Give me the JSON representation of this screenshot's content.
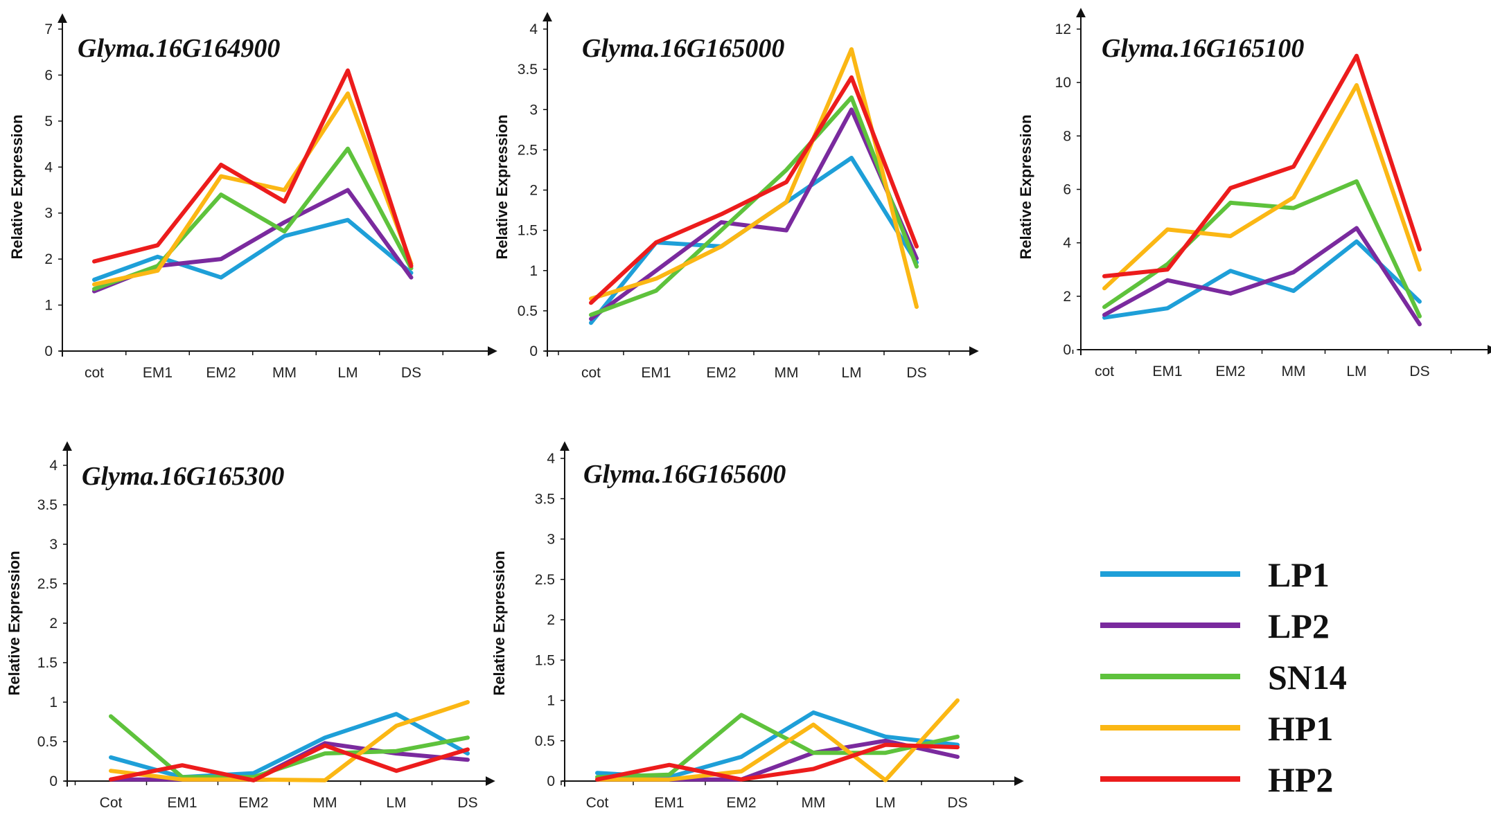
{
  "colors": {
    "LP1": "#1e9fd8",
    "LP2": "#7a2a9e",
    "SN14": "#5ec23c",
    "HP1": "#fbb714",
    "HP2": "#ec1c1c"
  },
  "legend": [
    {
      "name": "LP1",
      "color": "#1e9fd8"
    },
    {
      "name": "LP2",
      "color": "#7a2a9e"
    },
    {
      "name": "SN14",
      "color": "#5ec23c"
    },
    {
      "name": "HP1",
      "color": "#fbb714"
    },
    {
      "name": "HP2",
      "color": "#ec1c1c"
    }
  ],
  "chart_data": [
    {
      "type": "line",
      "title": "Glyma.16G164900",
      "ylabel": "Relative Expression",
      "xlabel": "",
      "categories": [
        "cot",
        "EM1",
        "EM2",
        "MM",
        "LM",
        "DS"
      ],
      "ylim": [
        0,
        7
      ],
      "yticks": [
        "0",
        "1",
        "2",
        "3",
        "4",
        "5",
        "6",
        "7"
      ],
      "ytick_values": [
        0,
        1,
        2,
        3,
        4,
        5,
        6,
        7
      ],
      "series": [
        {
          "name": "LP1",
          "values": [
            1.55,
            2.05,
            1.6,
            2.5,
            2.85,
            1.7
          ]
        },
        {
          "name": "LP2",
          "values": [
            1.3,
            1.85,
            2.0,
            2.8,
            3.5,
            1.6
          ]
        },
        {
          "name": "SN14",
          "values": [
            1.35,
            1.85,
            3.4,
            2.6,
            4.4,
            1.8
          ]
        },
        {
          "name": "HP1",
          "values": [
            1.45,
            1.75,
            3.8,
            3.5,
            5.6,
            1.9
          ]
        },
        {
          "name": "HP2",
          "values": [
            1.95,
            2.3,
            4.05,
            3.25,
            6.1,
            1.85
          ]
        }
      ]
    },
    {
      "type": "line",
      "title": "Glyma.16G165000",
      "ylabel": "Relative Expression",
      "xlabel": "",
      "categories": [
        "cot",
        "EM1",
        "EM2",
        "MM",
        "LM",
        "DS"
      ],
      "ylim": [
        0,
        4
      ],
      "yticks": [
        "0",
        "0.5",
        "1",
        "1.5",
        "2",
        "2.5",
        "3",
        "3.5",
        "4"
      ],
      "ytick_values": [
        0,
        0.5,
        1,
        1.5,
        2,
        2.5,
        3,
        3.5,
        4
      ],
      "series": [
        {
          "name": "LP1",
          "values": [
            0.35,
            1.35,
            1.3,
            1.85,
            2.4,
            1.1
          ]
        },
        {
          "name": "LP2",
          "values": [
            0.4,
            1.0,
            1.6,
            1.5,
            3.0,
            1.15
          ]
        },
        {
          "name": "SN14",
          "values": [
            0.45,
            0.75,
            1.5,
            2.25,
            3.15,
            1.05
          ]
        },
        {
          "name": "HP1",
          "values": [
            0.65,
            0.9,
            1.3,
            1.85,
            3.75,
            0.55
          ]
        },
        {
          "name": "HP2",
          "values": [
            0.6,
            1.35,
            1.7,
            2.1,
            3.4,
            1.3
          ]
        }
      ]
    },
    {
      "type": "line",
      "title": "Glyma.16G165100",
      "ylabel": "Relative Expression",
      "xlabel": "",
      "categories": [
        "cot",
        "EM1",
        "EM2",
        "MM",
        "LM",
        "DS"
      ],
      "ylim": [
        0,
        13
      ],
      "yticks": [
        "0",
        "2",
        "4",
        "6",
        "8",
        "10",
        "12"
      ],
      "ytick_values": [
        0,
        2,
        4,
        6,
        8,
        10,
        12
      ],
      "series": [
        {
          "name": "LP1",
          "values": [
            1.2,
            1.55,
            2.95,
            2.2,
            4.05,
            1.8
          ]
        },
        {
          "name": "LP2",
          "values": [
            1.3,
            2.6,
            2.1,
            2.9,
            4.55,
            0.95
          ]
        },
        {
          "name": "SN14",
          "values": [
            1.6,
            3.2,
            5.5,
            5.3,
            6.3,
            1.25
          ]
        },
        {
          "name": "HP1",
          "values": [
            2.3,
            4.5,
            4.25,
            5.7,
            9.9,
            3.0
          ]
        },
        {
          "name": "HP2",
          "values": [
            2.75,
            3.0,
            6.05,
            6.85,
            11.0,
            3.75
          ]
        }
      ]
    },
    {
      "type": "line",
      "title": "Glyma.16G165300",
      "ylabel": "Relative Expression",
      "xlabel": "",
      "categories": [
        "Cot",
        "EM1",
        "EM2",
        "MM",
        "LM",
        "DS"
      ],
      "ylim": [
        0,
        4
      ],
      "yticks": [
        "0",
        "0.5",
        "1",
        "1.5",
        "2",
        "2.5",
        "3",
        "3.5",
        "4"
      ],
      "ytick_values": [
        0,
        0.5,
        1,
        1.5,
        2,
        2.5,
        3,
        3.5,
        4
      ],
      "series": [
        {
          "name": "LP1",
          "values": [
            0.3,
            0.05,
            0.1,
            0.55,
            0.85,
            0.35
          ]
        },
        {
          "name": "LP2",
          "values": [
            0.02,
            0.02,
            0.02,
            0.48,
            0.35,
            0.27
          ]
        },
        {
          "name": "SN14",
          "values": [
            0.82,
            0.05,
            0.05,
            0.35,
            0.38,
            0.55
          ]
        },
        {
          "name": "HP1",
          "values": [
            0.13,
            0.02,
            0.02,
            0.01,
            0.7,
            1.0
          ]
        },
        {
          "name": "HP2",
          "values": [
            0.02,
            0.2,
            0.01,
            0.45,
            0.13,
            0.4
          ]
        }
      ]
    },
    {
      "type": "line",
      "title": "Glyma.16G165600",
      "ylabel": "Relative Expression",
      "xlabel": "",
      "categories": [
        "Cot",
        "EM1",
        "EM2",
        "MM",
        "LM",
        "DS"
      ],
      "ylim": [
        0,
        4
      ],
      "yticks": [
        "0",
        "0.5",
        "1",
        "1.5",
        "2",
        "2.5",
        "3",
        "3.5",
        "4"
      ],
      "ytick_values": [
        0,
        0.5,
        1,
        1.5,
        2,
        2.5,
        3,
        3.5,
        4
      ],
      "series": [
        {
          "name": "LP1",
          "values": [
            0.1,
            0.05,
            0.3,
            0.85,
            0.55,
            0.45
          ]
        },
        {
          "name": "LP2",
          "values": [
            0.02,
            0.02,
            0.02,
            0.35,
            0.5,
            0.3
          ]
        },
        {
          "name": "SN14",
          "values": [
            0.05,
            0.08,
            0.82,
            0.35,
            0.35,
            0.55
          ]
        },
        {
          "name": "HP1",
          "values": [
            0.02,
            0.02,
            0.12,
            0.7,
            0.01,
            1.0
          ]
        },
        {
          "name": "HP2",
          "values": [
            0.02,
            0.2,
            0.02,
            0.15,
            0.45,
            0.42
          ]
        }
      ]
    }
  ]
}
